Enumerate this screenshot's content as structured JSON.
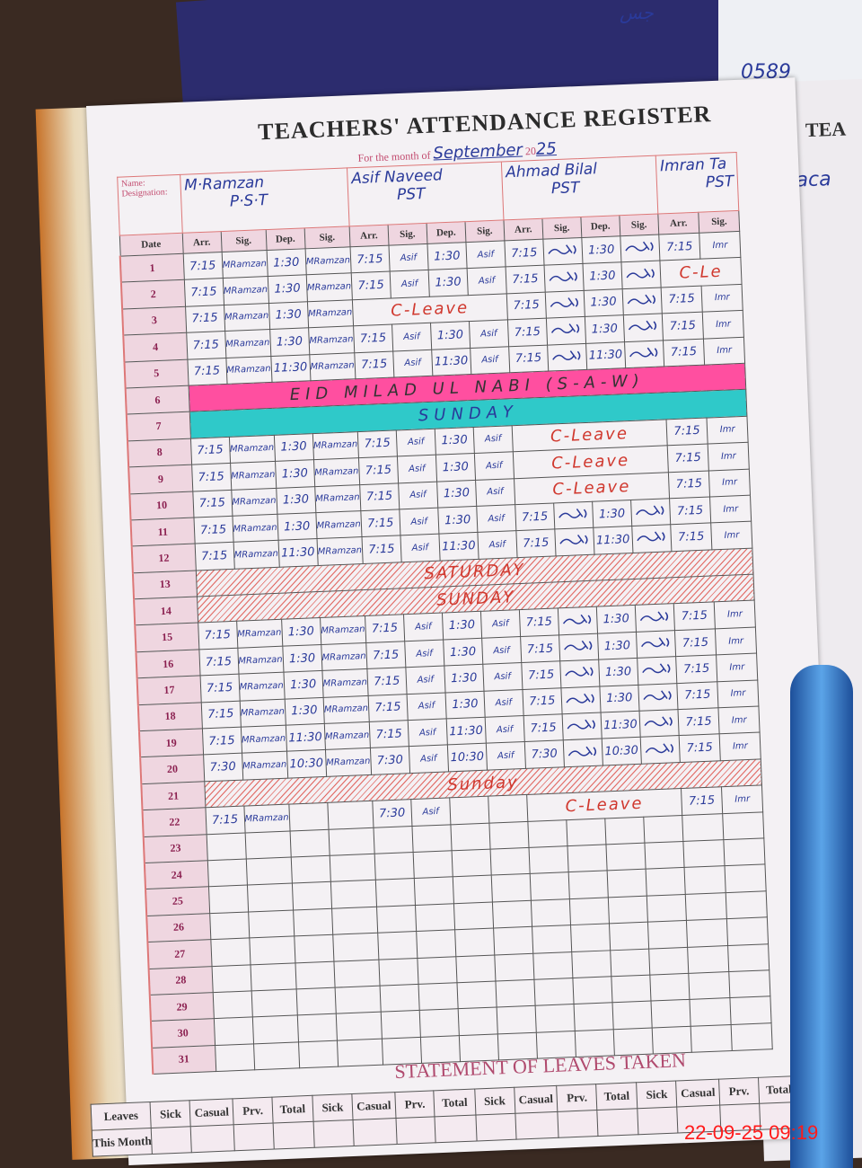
{
  "header": {
    "title": "TEACHERS' ATTENDANCE REGISTER",
    "month_label": "For the month of",
    "month": "September",
    "year_prefix": "20",
    "year_suffix": "25"
  },
  "labels": {
    "name": "Name:",
    "designation": "Designation:",
    "date": "Date",
    "arr": "Arr.",
    "sig": "Sig.",
    "dep": "Dep."
  },
  "teachers": [
    {
      "name": "M·Ramzan",
      "designation": "P·S·T",
      "signature": "MRamzan"
    },
    {
      "name": "Asif Naveed",
      "designation": "PST",
      "signature": "Asif"
    },
    {
      "name": "Ahmad Bilal",
      "designation": "PST",
      "signature": ""
    },
    {
      "name": "Imran Ta",
      "designation": "PST",
      "signature": "Imr"
    }
  ],
  "rows": [
    {
      "date": "1",
      "cells": [
        [
          "7:15",
          "1:30"
        ],
        [
          "7:15",
          "1:30"
        ],
        [
          "7:15",
          "1:30"
        ],
        [
          "7:15"
        ]
      ]
    },
    {
      "date": "2",
      "cells": [
        [
          "7:15",
          "1:30"
        ],
        [
          "7:15",
          "1:30"
        ],
        [
          "7:15",
          "1:30"
        ],
        "C-Le"
      ]
    },
    {
      "date": "3",
      "cells": [
        [
          "7:15",
          "1:30"
        ],
        "C-Leave",
        [
          "7:15",
          "1:30"
        ],
        [
          "7:15"
        ]
      ]
    },
    {
      "date": "4",
      "cells": [
        [
          "7:15",
          "1:30"
        ],
        [
          "7:15",
          "1:30"
        ],
        [
          "7:15",
          "1:30"
        ],
        [
          "7:15"
        ]
      ]
    },
    {
      "date": "5",
      "cells": [
        [
          "7:15",
          "11:30"
        ],
        [
          "7:15",
          "11:30"
        ],
        [
          "7:15",
          "11:30"
        ],
        [
          "7:15"
        ]
      ]
    },
    {
      "date": "6",
      "banner": "EID MILAD UL NABI (S-A-W)",
      "style": "pink"
    },
    {
      "date": "7",
      "banner": "SUNDAY",
      "style": "cyan"
    },
    {
      "date": "8",
      "cells": [
        [
          "7:15",
          "1:30"
        ],
        [
          "7:15",
          "1:30"
        ],
        "C-Leave",
        [
          "7:15"
        ]
      ]
    },
    {
      "date": "9",
      "cells": [
        [
          "7:15",
          "1:30"
        ],
        [
          "7:15",
          "1:30"
        ],
        "C-Leave",
        [
          "7:15"
        ]
      ]
    },
    {
      "date": "10",
      "cells": [
        [
          "7:15",
          "1:30"
        ],
        [
          "7:15",
          "1:30"
        ],
        "C-Leave",
        [
          "7:15"
        ]
      ]
    },
    {
      "date": "11",
      "cells": [
        [
          "7:15",
          "1:30"
        ],
        [
          "7:15",
          "1:30"
        ],
        [
          "7:15",
          "1:30"
        ],
        [
          "7:15"
        ]
      ]
    },
    {
      "date": "12",
      "cells": [
        [
          "7:15",
          "11:30"
        ],
        [
          "7:15",
          "11:30"
        ],
        [
          "7:15",
          "11:30"
        ],
        [
          "7:15"
        ]
      ]
    },
    {
      "date": "13",
      "holiday": "SATURDAY"
    },
    {
      "date": "14",
      "holiday": "SUNDAY"
    },
    {
      "date": "15",
      "cells": [
        [
          "7:15",
          "1:30"
        ],
        [
          "7:15",
          "1:30"
        ],
        [
          "7:15",
          "1:30"
        ],
        [
          "7:15"
        ]
      ]
    },
    {
      "date": "16",
      "cells": [
        [
          "7:15",
          "1:30"
        ],
        [
          "7:15",
          "1:30"
        ],
        [
          "7:15",
          "1:30"
        ],
        [
          "7:15"
        ]
      ]
    },
    {
      "date": "17",
      "cells": [
        [
          "7:15",
          "1:30"
        ],
        [
          "7:15",
          "1:30"
        ],
        [
          "7:15",
          "1:30"
        ],
        [
          "7:15"
        ]
      ]
    },
    {
      "date": "18",
      "cells": [
        [
          "7:15",
          "1:30"
        ],
        [
          "7:15",
          "1:30"
        ],
        [
          "7:15",
          "1:30"
        ],
        [
          "7:15"
        ]
      ]
    },
    {
      "date": "19",
      "cells": [
        [
          "7:15",
          "11:30"
        ],
        [
          "7:15",
          "11:30"
        ],
        [
          "7:15",
          "11:30"
        ],
        [
          "7:15"
        ]
      ]
    },
    {
      "date": "20",
      "cells": [
        [
          "7:30",
          "10:30"
        ],
        [
          "7:30",
          "10:30"
        ],
        [
          "7:30",
          "10:30"
        ],
        [
          "7:15"
        ]
      ]
    },
    {
      "date": "21",
      "holiday": "Sunday"
    },
    {
      "date": "22",
      "cells": [
        [
          "7:15"
        ],
        [
          "7:30"
        ],
        "C-Leave",
        [
          "7:15"
        ]
      ]
    },
    {
      "date": "23"
    },
    {
      "date": "24"
    },
    {
      "date": "25"
    },
    {
      "date": "26"
    },
    {
      "date": "27"
    },
    {
      "date": "28"
    },
    {
      "date": "29"
    },
    {
      "date": "30"
    },
    {
      "date": "31"
    }
  ],
  "statement": {
    "title": "STATEMENT OF LEAVES TAKEN",
    "row_header": "Leaves",
    "columns": [
      "Sick",
      "Casual",
      "Prv.",
      "Total"
    ],
    "row_label": "This Month"
  },
  "right_page": {
    "title": "TEA",
    "name": "Vaca"
  },
  "background": {
    "slip_number": "0589",
    "top_note": "جس"
  },
  "timestamp": "22-09-25 09:19"
}
